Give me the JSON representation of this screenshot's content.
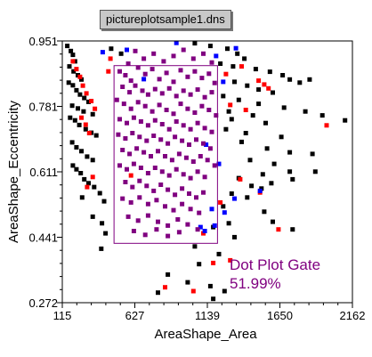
{
  "window": {
    "title": "pictureplotsample1.dns"
  },
  "chart_data": {
    "type": "scatter",
    "xlabel": "AreaShape_Area",
    "ylabel": "AreaShape_Eccentricity",
    "xlim": [
      115,
      2162
    ],
    "ylim": [
      0.272,
      0.951
    ],
    "x_ticks": [
      "115",
      "627",
      "1139",
      "1650",
      "2162"
    ],
    "y_ticks": [
      "0.951",
      "0.781",
      "0.611",
      "0.441",
      "0.272"
    ],
    "gate": {
      "label": "Dot Plot Gate",
      "percent": "51.99%",
      "x_range": [
        480,
        1210
      ],
      "y_range": [
        0.426,
        0.887
      ],
      "color": "#800080"
    },
    "colors": {
      "black": "#000000",
      "red": "#ff0000",
      "blue": "#0000ff",
      "purple": "#800080"
    },
    "series": [
      {
        "color": "black",
        "points": [
          [
            150,
            0.938
          ],
          [
            175,
            0.925
          ],
          [
            190,
            0.915
          ],
          [
            205,
            0.898
          ],
          [
            165,
            0.885
          ],
          [
            195,
            0.872
          ],
          [
            225,
            0.862
          ],
          [
            250,
            0.851
          ],
          [
            160,
            0.843
          ],
          [
            190,
            0.836
          ],
          [
            215,
            0.823
          ],
          [
            240,
            0.812
          ],
          [
            270,
            0.803
          ],
          [
            300,
            0.793
          ],
          [
            185,
            0.783
          ],
          [
            225,
            0.776
          ],
          [
            265,
            0.768
          ],
          [
            330,
            0.761
          ],
          [
            170,
            0.752
          ],
          [
            205,
            0.745
          ],
          [
            235,
            0.733
          ],
          [
            280,
            0.722
          ],
          [
            320,
            0.713
          ],
          [
            355,
            0.706
          ],
          [
            185,
            0.688
          ],
          [
            215,
            0.675
          ],
          [
            250,
            0.665
          ],
          [
            290,
            0.651
          ],
          [
            330,
            0.642
          ],
          [
            190,
            0.628
          ],
          [
            215,
            0.618
          ],
          [
            245,
            0.608
          ],
          [
            270,
            0.592
          ],
          [
            300,
            0.582
          ],
          [
            340,
            0.572
          ],
          [
            380,
            0.556
          ],
          [
            255,
            0.545
          ],
          [
            410,
            0.535
          ],
          [
            460,
            0.931
          ],
          [
            530,
            0.918
          ],
          [
            1050,
            0.945
          ],
          [
            1160,
            0.938
          ],
          [
            1280,
            0.931
          ],
          [
            1350,
            0.918
          ],
          [
            1400,
            0.905
          ],
          [
            1230,
            0.892
          ],
          [
            1320,
            0.885
          ],
          [
            1480,
            0.878
          ],
          [
            1580,
            0.871
          ],
          [
            1670,
            0.862
          ],
          [
            1720,
            0.851
          ],
          [
            1790,
            0.843
          ],
          [
            1860,
            0.851
          ],
          [
            1330,
            0.845
          ],
          [
            1420,
            0.835
          ],
          [
            1500,
            0.825
          ],
          [
            1600,
            0.817
          ],
          [
            1250,
            0.808
          ],
          [
            1360,
            0.798
          ],
          [
            1500,
            0.788
          ],
          [
            1680,
            0.778
          ],
          [
            1290,
            0.768
          ],
          [
            1460,
            0.758
          ],
          [
            1830,
            0.768
          ],
          [
            1950,
            0.758
          ],
          [
            2110,
            0.745
          ],
          [
            1310,
            0.748
          ],
          [
            1550,
            0.738
          ],
          [
            1270,
            0.722
          ],
          [
            1410,
            0.712
          ],
          [
            1660,
            0.702
          ],
          [
            1380,
            0.689
          ],
          [
            1560,
            0.672
          ],
          [
            1720,
            0.662
          ],
          [
            1880,
            0.658
          ],
          [
            1440,
            0.642
          ],
          [
            1610,
            0.632
          ],
          [
            1720,
            0.612
          ],
          [
            1530,
            0.605
          ],
          [
            1900,
            0.612
          ],
          [
            1360,
            0.595
          ],
          [
            1590,
            0.582
          ],
          [
            1740,
            0.592
          ],
          [
            1520,
            0.568
          ],
          [
            1420,
            0.545
          ],
          [
            1250,
            0.522
          ],
          [
            1540,
            0.508
          ],
          [
            1600,
            0.482
          ],
          [
            1740,
            0.462
          ],
          [
            1180,
            0.468
          ],
          [
            1290,
            0.478
          ],
          [
            1330,
            0.442
          ],
          [
            1050,
            0.418
          ],
          [
            1220,
            0.398
          ],
          [
            860,
            0.345
          ],
          [
            1000,
            0.325
          ],
          [
            1160,
            0.315
          ],
          [
            1180,
            0.282
          ],
          [
            1260,
            0.302
          ],
          [
            330,
            0.495
          ],
          [
            395,
            0.478
          ],
          [
            420,
            0.452
          ],
          [
            390,
            0.412
          ],
          [
            1310,
            0.555
          ],
          [
            1450,
            0.575
          ],
          [
            1080,
            0.372
          ],
          [
            790,
            0.298
          ]
        ]
      },
      {
        "color": "red",
        "points": [
          [
            190,
            0.898
          ],
          [
            215,
            0.878
          ],
          [
            240,
            0.858
          ],
          [
            260,
            0.835
          ],
          [
            285,
            0.815
          ],
          [
            320,
            0.795
          ],
          [
            345,
            0.775
          ],
          [
            250,
            0.752
          ],
          [
            280,
            0.734
          ],
          [
            305,
            0.712
          ],
          [
            330,
            0.598
          ],
          [
            290,
            0.572
          ],
          [
            455,
            0.905
          ],
          [
            1270,
            0.865
          ],
          [
            1380,
            0.885
          ],
          [
            1500,
            0.848
          ],
          [
            1570,
            0.828
          ],
          [
            1300,
            0.785
          ],
          [
            1410,
            0.772
          ],
          [
            1980,
            0.732
          ],
          [
            1370,
            0.592
          ],
          [
            1510,
            0.558
          ],
          [
            1230,
            0.532
          ],
          [
            1640,
            0.462
          ],
          [
            1110,
            0.452
          ],
          [
            1180,
            0.375
          ],
          [
            840,
            0.312
          ],
          [
            1040,
            0.302
          ],
          [
            1300,
            0.382
          ],
          [
            1540,
            0.838
          ],
          [
            600,
            0.602
          ],
          [
            440,
            0.872
          ]
        ]
      },
      {
        "color": "blue",
        "points": [
          [
            920,
            0.946
          ],
          [
            1200,
            0.912
          ],
          [
            1340,
            0.932
          ],
          [
            400,
            0.922
          ],
          [
            570,
            0.928
          ],
          [
            1250,
            0.845
          ],
          [
            1510,
            0.562
          ],
          [
            1330,
            0.542
          ],
          [
            1260,
            0.506
          ],
          [
            1190,
            0.472
          ],
          [
            1120,
            0.458
          ],
          [
            690,
            0.852
          ],
          [
            1130,
            0.682
          ],
          [
            1220,
            0.632
          ],
          [
            1170,
            0.515
          ],
          [
            1090,
            0.468
          ]
        ]
      },
      {
        "color": "purple",
        "points": [
          [
            520,
            0.872
          ],
          [
            560,
            0.862
          ],
          [
            600,
            0.848
          ],
          [
            650,
            0.882
          ],
          [
            700,
            0.865
          ],
          [
            750,
            0.878
          ],
          [
            800,
            0.852
          ],
          [
            850,
            0.868
          ],
          [
            900,
            0.845
          ],
          [
            950,
            0.875
          ],
          [
            1000,
            0.858
          ],
          [
            1050,
            0.872
          ],
          [
            1100,
            0.855
          ],
          [
            1150,
            0.866
          ],
          [
            1190,
            0.842
          ],
          [
            540,
            0.832
          ],
          [
            590,
            0.818
          ],
          [
            630,
            0.835
          ],
          [
            680,
            0.822
          ],
          [
            720,
            0.812
          ],
          [
            770,
            0.826
          ],
          [
            820,
            0.815
          ],
          [
            870,
            0.828
          ],
          [
            920,
            0.808
          ],
          [
            970,
            0.822
          ],
          [
            1020,
            0.812
          ],
          [
            1070,
            0.825
          ],
          [
            1120,
            0.805
          ],
          [
            1170,
            0.818
          ],
          [
            500,
            0.798
          ],
          [
            550,
            0.788
          ],
          [
            600,
            0.775
          ],
          [
            650,
            0.792
          ],
          [
            700,
            0.782
          ],
          [
            750,
            0.768
          ],
          [
            800,
            0.785
          ],
          [
            850,
            0.772
          ],
          [
            900,
            0.762
          ],
          [
            950,
            0.788
          ],
          [
            1000,
            0.775
          ],
          [
            1050,
            0.765
          ],
          [
            1100,
            0.782
          ],
          [
            1150,
            0.772
          ],
          [
            1200,
            0.758
          ],
          [
            520,
            0.748
          ],
          [
            570,
            0.738
          ],
          [
            620,
            0.752
          ],
          [
            670,
            0.742
          ],
          [
            720,
            0.732
          ],
          [
            770,
            0.745
          ],
          [
            820,
            0.735
          ],
          [
            870,
            0.722
          ],
          [
            920,
            0.742
          ],
          [
            970,
            0.732
          ],
          [
            1020,
            0.722
          ],
          [
            1070,
            0.738
          ],
          [
            1120,
            0.725
          ],
          [
            1170,
            0.715
          ],
          [
            510,
            0.708
          ],
          [
            560,
            0.698
          ],
          [
            610,
            0.712
          ],
          [
            660,
            0.702
          ],
          [
            710,
            0.692
          ],
          [
            760,
            0.705
          ],
          [
            810,
            0.695
          ],
          [
            860,
            0.685
          ],
          [
            910,
            0.702
          ],
          [
            960,
            0.692
          ],
          [
            1010,
            0.682
          ],
          [
            1060,
            0.695
          ],
          [
            1110,
            0.685
          ],
          [
            1160,
            0.672
          ],
          [
            540,
            0.668
          ],
          [
            590,
            0.658
          ],
          [
            640,
            0.672
          ],
          [
            690,
            0.662
          ],
          [
            740,
            0.652
          ],
          [
            790,
            0.665
          ],
          [
            840,
            0.652
          ],
          [
            890,
            0.642
          ],
          [
            940,
            0.658
          ],
          [
            990,
            0.648
          ],
          [
            1040,
            0.638
          ],
          [
            1090,
            0.652
          ],
          [
            1140,
            0.642
          ],
          [
            1190,
            0.628
          ],
          [
            520,
            0.628
          ],
          [
            570,
            0.618
          ],
          [
            620,
            0.632
          ],
          [
            670,
            0.622
          ],
          [
            720,
            0.608
          ],
          [
            770,
            0.622
          ],
          [
            820,
            0.612
          ],
          [
            870,
            0.602
          ],
          [
            920,
            0.618
          ],
          [
            970,
            0.605
          ],
          [
            1020,
            0.595
          ],
          [
            1070,
            0.612
          ],
          [
            1120,
            0.598
          ],
          [
            560,
            0.585
          ],
          [
            610,
            0.572
          ],
          [
            660,
            0.588
          ],
          [
            710,
            0.575
          ],
          [
            760,
            0.562
          ],
          [
            810,
            0.578
          ],
          [
            860,
            0.565
          ],
          [
            910,
            0.552
          ],
          [
            960,
            0.568
          ],
          [
            1010,
            0.555
          ],
          [
            1060,
            0.545
          ],
          [
            1110,
            0.558
          ],
          [
            540,
            0.542
          ],
          [
            600,
            0.532
          ],
          [
            660,
            0.545
          ],
          [
            720,
            0.528
          ],
          [
            780,
            0.538
          ],
          [
            840,
            0.522
          ],
          [
            900,
            0.512
          ],
          [
            960,
            0.528
          ],
          [
            1020,
            0.515
          ],
          [
            1080,
            0.505
          ],
          [
            580,
            0.495
          ],
          [
            650,
            0.485
          ],
          [
            720,
            0.498
          ],
          [
            790,
            0.482
          ],
          [
            860,
            0.472
          ],
          [
            930,
            0.488
          ],
          [
            1000,
            0.475
          ],
          [
            1070,
            0.462
          ],
          [
            620,
            0.458
          ],
          [
            700,
            0.448
          ],
          [
            780,
            0.462
          ],
          [
            860,
            0.445
          ],
          [
            940,
            0.455
          ],
          [
            690,
            0.905
          ],
          [
            760,
            0.918
          ],
          [
            830,
            0.898
          ],
          [
            900,
            0.912
          ],
          [
            970,
            0.928
          ],
          [
            1040,
            0.905
          ],
          [
            1110,
            0.918
          ],
          [
            1170,
            0.895
          ],
          [
            630,
            0.925
          ],
          [
            580,
            0.892
          ]
        ]
      }
    ]
  }
}
